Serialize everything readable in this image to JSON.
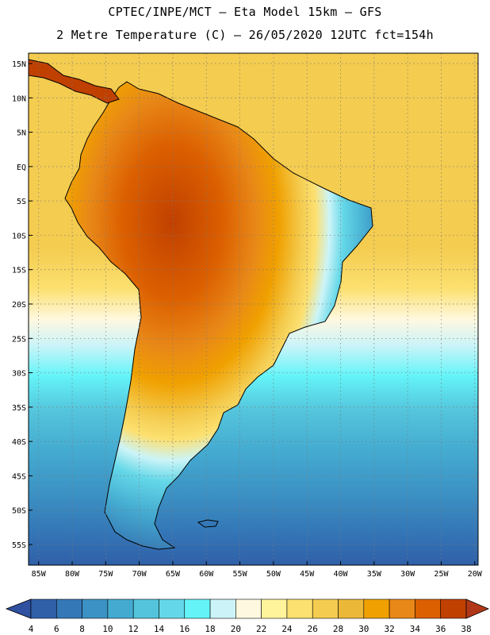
{
  "title_line1": "CPTEC/INPE/MCT –  Eta Model 15km – GFS",
  "title_line2": "2 Metre Temperature (C) – 26/05/2020 12UTC fct=154h",
  "lat_labels": [
    "15N",
    "10N",
    "5N",
    "EQ",
    "5S",
    "10S",
    "15S",
    "20S",
    "25S",
    "30S",
    "35S",
    "40S",
    "45S",
    "50S",
    "55S"
  ],
  "lon_labels": [
    "85W",
    "80W",
    "75W",
    "70W",
    "65W",
    "60W",
    "55W",
    "50W",
    "45W",
    "40W",
    "35W",
    "30W",
    "25W",
    "20W"
  ],
  "colorbar": {
    "labels": [
      "4",
      "6",
      "8",
      "10",
      "12",
      "14",
      "16",
      "18",
      "20",
      "22",
      "24",
      "26",
      "28",
      "30",
      "32",
      "34",
      "36",
      "38"
    ],
    "colors": [
      "#3060a8",
      "#3478b8",
      "#3c92c4",
      "#44aad0",
      "#54c4dc",
      "#64d8e8",
      "#64f4f8",
      "#ccf4f8",
      "#fff8e0",
      "#fff49c",
      "#fce070",
      "#f4cc50",
      "#ecb838",
      "#f0a000",
      "#e88818",
      "#dc6000",
      "#c04000"
    ],
    "low_color": "#3050a0",
    "high_color": "#b03818"
  }
}
